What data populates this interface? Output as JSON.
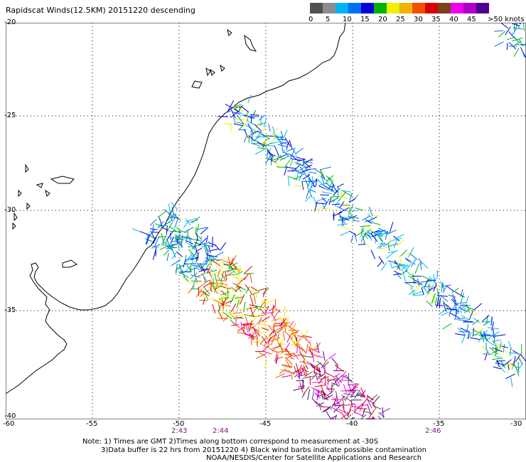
{
  "title": "Rapidscat Winds(12.5KM) 20151220 descending",
  "legend": {
    "colors": [
      "#505050",
      "#8c8c8c",
      "#00b4f0",
      "#0070f0",
      "#0000d8",
      "#00b400",
      "#f0f000",
      "#f0b400",
      "#f05000",
      "#d80000",
      "#7a4020",
      "#f000f0",
      "#b000c8",
      "#500090"
    ],
    "ticks": [
      "0",
      "5",
      "10",
      "15",
      "20",
      "25",
      "30",
      "35",
      "40",
      "45",
      ">50 knots"
    ]
  },
  "axes": {
    "lat_labels": [
      "-20",
      "-25",
      "-30",
      "-35",
      "-40"
    ],
    "lon_labels": [
      "-60",
      "-55",
      "-50",
      "-45",
      "-40",
      "-35",
      "-30"
    ]
  },
  "times": [
    "2:43",
    "2:44",
    "2:46"
  ],
  "notes": [
    "Note: 1) Times are GMT 2)Times along bottom correspond to measurement at -30S",
    "3)Data buffer is 22 hrs from 20151220 4) Black wind barbs indicate possible contamination",
    "NOAA/NESDIS/Center for Satellite Applications and Research"
  ],
  "colors": {
    "grid": "#000000",
    "coast": "#000000",
    "time_label": "#7a1b83"
  }
}
